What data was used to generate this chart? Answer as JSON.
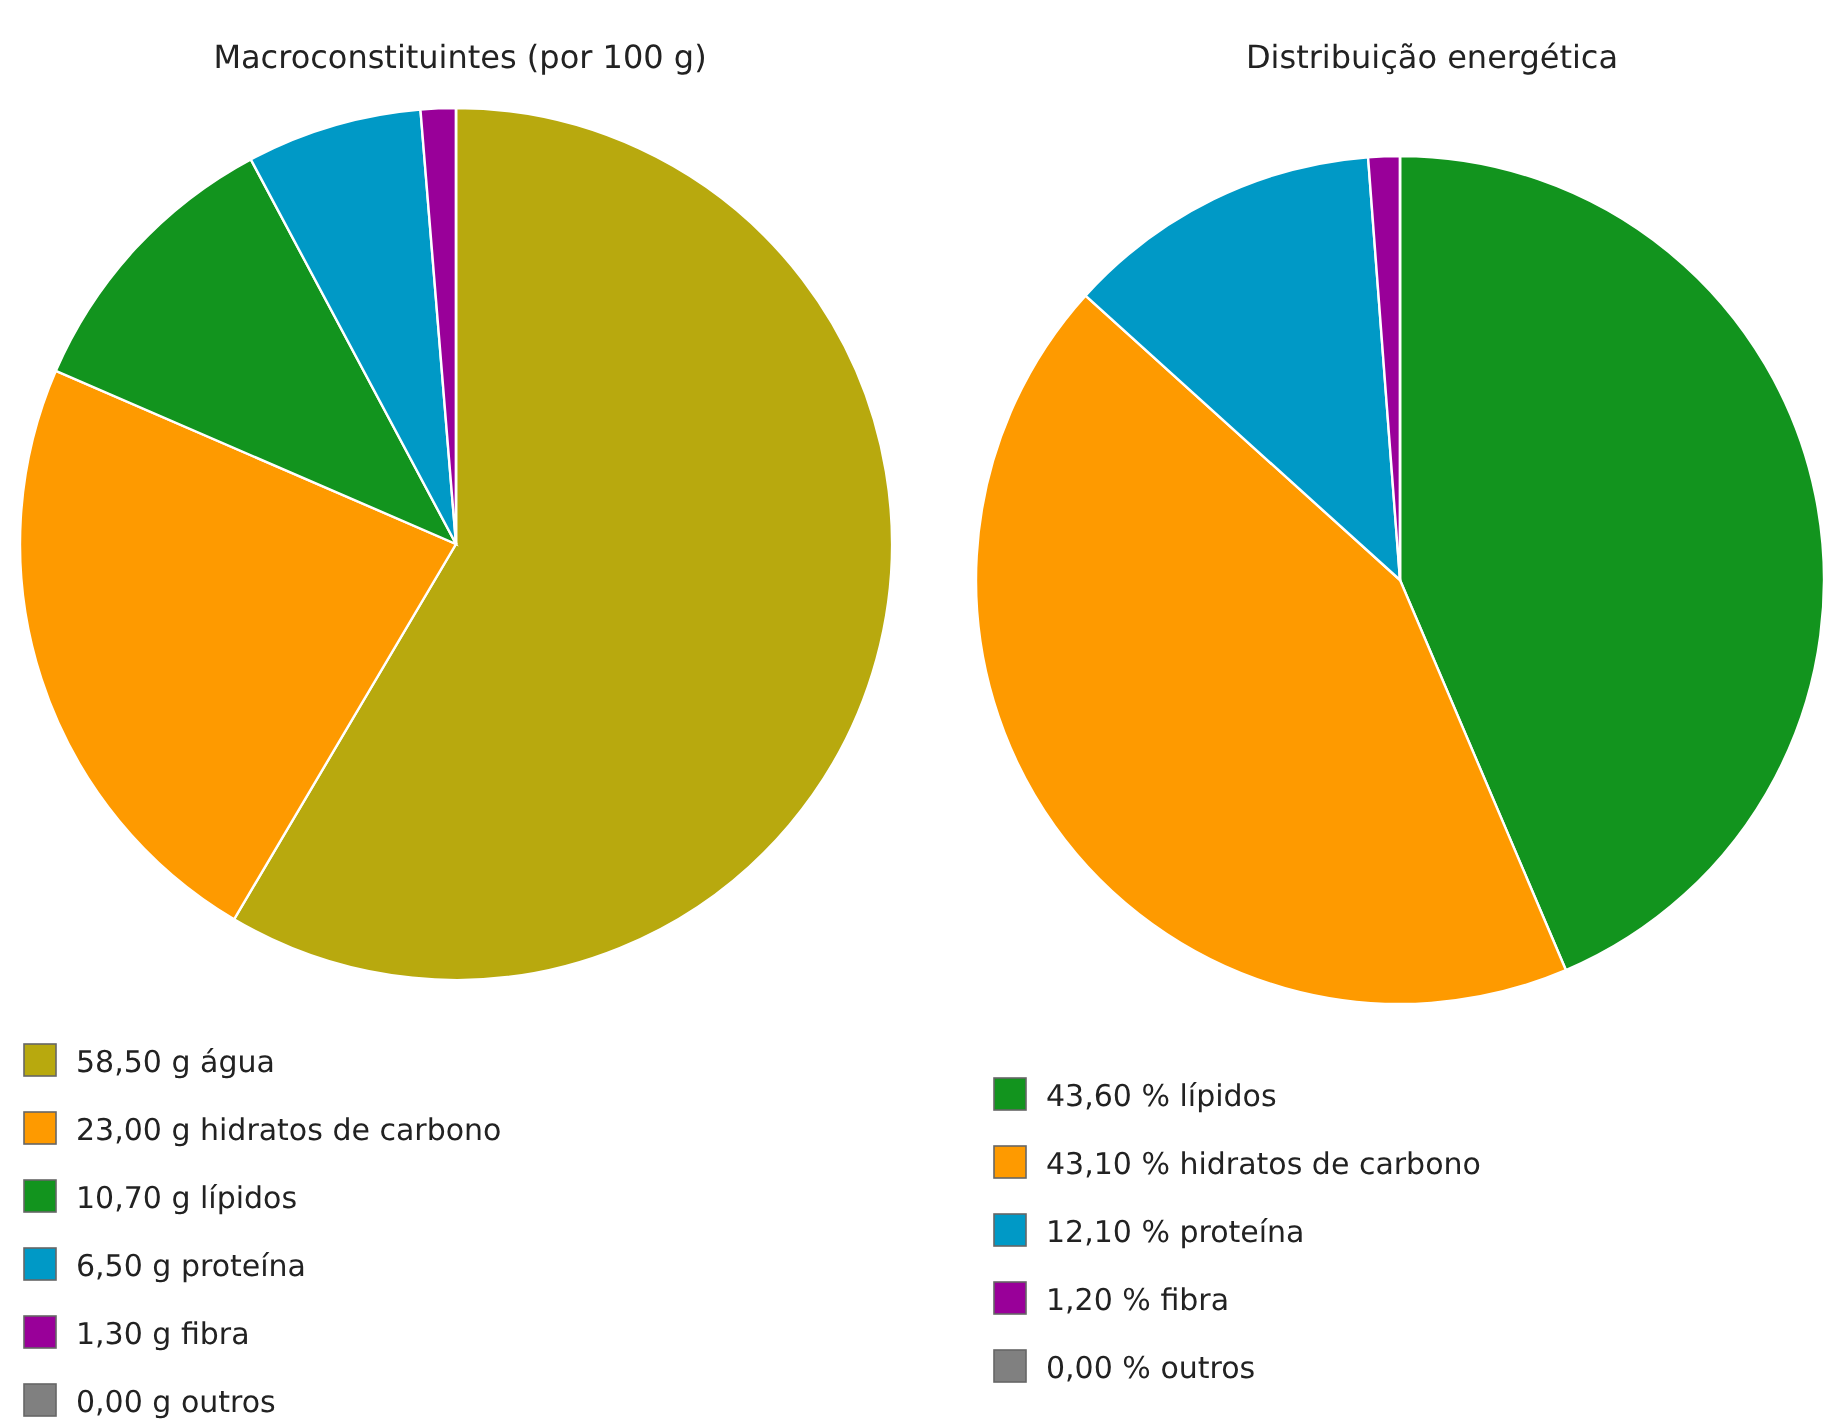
{
  "chart_data": [
    {
      "type": "pie",
      "title": "Macroconstituintes (por 100 g)",
      "legend": "bottom",
      "categories": [
        "58,50 g água",
        "23,00 g hidratos de carbono",
        "10,70 g lípidos",
        "6,50 g proteína",
        "1,30 g fibra",
        "0,00 g outros"
      ],
      "values": [
        58.5,
        23.0,
        10.7,
        6.5,
        1.3,
        0
      ],
      "colors": [
        "#b8a90e",
        "#fe9a00",
        "#12941e",
        "#0099c6",
        "#990099",
        "#808080"
      ]
    },
    {
      "type": "pie",
      "title": "Distribuição energética",
      "legend": "bottom",
      "categories": [
        "43,60 % lípidos",
        "43,10 % hidratos de carbono",
        "12,10 % proteína",
        "1,20 % fibra",
        "0,00 % outros"
      ],
      "values": [
        43.6,
        43.1,
        12.1,
        1.2,
        0
      ],
      "colors": [
        "#12941e",
        "#fe9a00",
        "#0099c6",
        "#990099",
        "#808080"
      ]
    }
  ]
}
